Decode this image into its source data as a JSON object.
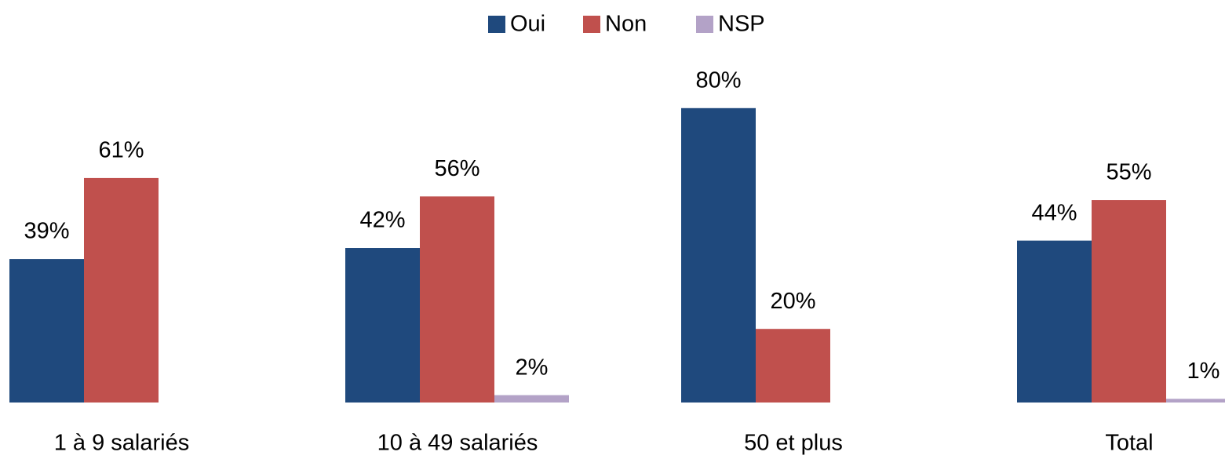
{
  "chart_data": {
    "type": "bar",
    "categories": [
      "1 à 9 salariés",
      "10 à 49 salariés",
      "50 et plus",
      "Total"
    ],
    "series": [
      {
        "name": "Oui",
        "color": "#1f497d",
        "values": [
          39,
          42,
          80,
          44
        ],
        "value_labels": [
          "39%",
          "42%",
          "80%",
          "44%"
        ]
      },
      {
        "name": "Non",
        "color": "#c0504d",
        "values": [
          61,
          56,
          20,
          55
        ],
        "value_labels": [
          "61%",
          "56%",
          "20%",
          "55%"
        ]
      },
      {
        "name": "NSP",
        "color": "#b3a2c7",
        "values": [
          null,
          2,
          null,
          1
        ],
        "value_labels": [
          null,
          "2%",
          null,
          "1%"
        ]
      }
    ],
    "ylim": [
      0,
      100
    ],
    "legend": "top"
  }
}
